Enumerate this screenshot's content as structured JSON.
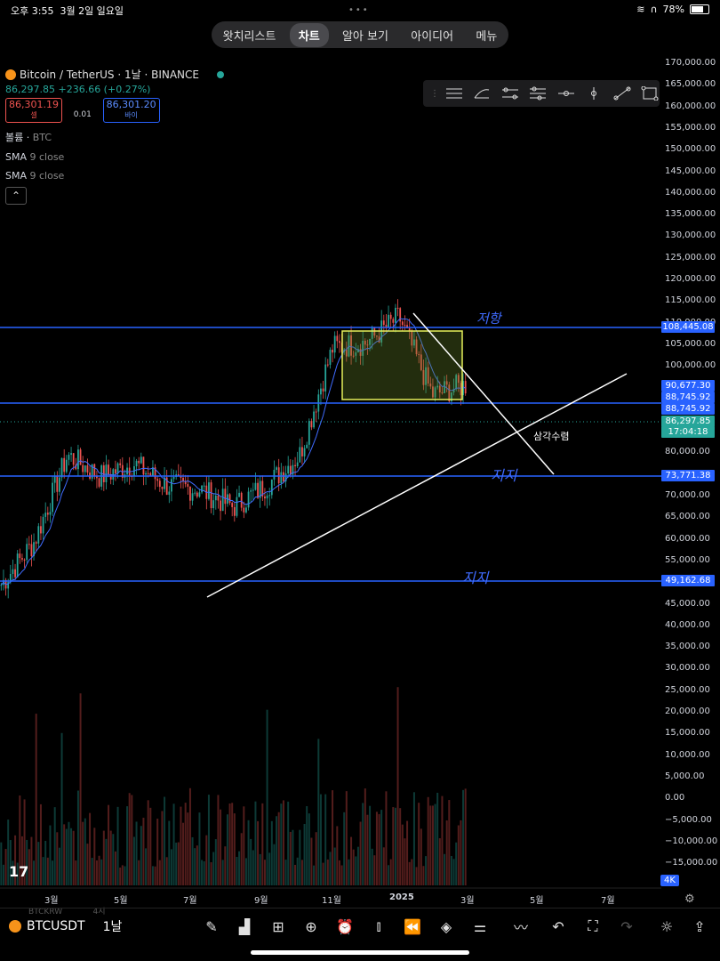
{
  "status": {
    "time": "오후 3:55",
    "date": "3월 2일 일요일",
    "battery": "78%"
  },
  "nav": {
    "tabs": [
      "왓치리스트",
      "차트",
      "알아 보기",
      "아이디어",
      "메뉴"
    ],
    "active": "차트"
  },
  "legend": {
    "title": "Bitcoin / TetherUS · 1날 · BINANCE",
    "price": "86,297.85",
    "change": "+236.66 (+0.27%)",
    "sell_price": "86,301.19",
    "sell_label": "셀",
    "spread": "0.01",
    "buy_price": "86,301.20",
    "buy_label": "바이",
    "indicators": [
      {
        "name": "볼륨",
        "value": "BTC"
      },
      {
        "name": "SMA",
        "value": "9 close"
      },
      {
        "name": "SMA",
        "value": "9 close"
      }
    ]
  },
  "drawing_tools": [
    "horizontal-lines",
    "curve",
    "parallel-channel",
    "pitchfork",
    "horizontal-ray",
    "vertical-line",
    "trend-line",
    "rectangle"
  ],
  "yaxis": [
    "170,000.00",
    "165,000.00",
    "160,000.00",
    "155,000.00",
    "150,000.00",
    "145,000.00",
    "140,000.00",
    "135,000.00",
    "130,000.00",
    "125,000.00",
    "120,000.00",
    "115,000.00",
    "110,000.00",
    "105,000.00",
    "100,000.00",
    "95,000.00",
    "90,000.00",
    "85,000.00",
    "80,000.00",
    "75,000.00",
    "70,000.00",
    "65,000.00",
    "60,000.00",
    "55,000.00",
    "50,000.00",
    "45,000.00",
    "40,000.00",
    "35,000.00",
    "30,000.00",
    "25,000.00",
    "20,000.00",
    "15,000.00",
    "10,000.00",
    "5,000.00",
    "0.00",
    "−5,000.00",
    "−10,000.00",
    "−15,000.00"
  ],
  "price_tags": [
    {
      "label": "108,445.08",
      "color": "#2962ff"
    },
    {
      "label": "90,677.30",
      "color": "#2962ff"
    },
    {
      "label": "88,745.92",
      "color": "#2962ff"
    },
    {
      "label": "88,745.92",
      "color": "#2962ff"
    },
    {
      "label": "86,297.85",
      "color": "#26a69a"
    },
    {
      "label": "17:04:18",
      "color": "#26a69a"
    },
    {
      "label": "73,771.38",
      "color": "#2962ff"
    },
    {
      "label": "49,162.68",
      "color": "#2962ff"
    }
  ],
  "annotations": {
    "resistance": "저항",
    "support1": "지지",
    "support2": "지지",
    "triangle": "삼각수렴"
  },
  "xaxis": [
    "3월",
    "5월",
    "7월",
    "9월",
    "11월",
    "2025",
    "3월",
    "5월",
    "7월"
  ],
  "badge_4k": "4K",
  "bottom": {
    "symbol": "BTCUSDT",
    "interval": "1날",
    "ghost_rows": [
      "BTCKRW",
      "4시",
      "USDKRW",
      "1M"
    ],
    "tools": [
      "pencil-icon",
      "chart-type-icon",
      "grid-icon",
      "add-icon",
      "alarm-icon",
      "candles-icon",
      "replay-icon",
      "layers-icon",
      "settings-sliders-icon",
      "compare-icon",
      "undo-icon",
      "fullscreen-icon",
      "redo-icon",
      "idea-icon",
      "share-icon"
    ]
  },
  "chart_data": {
    "type": "candlestick",
    "symbol": "Bitcoin / TetherUS",
    "interval": "1날",
    "ylim": [
      -15000,
      170000
    ],
    "x_ticks": [
      "3월",
      "5월",
      "7월",
      "9월",
      "11월",
      "2025",
      "3월",
      "5월",
      "7월"
    ],
    "horizontal_levels": [
      108445.08,
      88745.92,
      73771.38,
      49162.68
    ],
    "last_price": 86297.85,
    "annotations": [
      "저항",
      "지지",
      "지지",
      "삼각수렴"
    ],
    "approx_path": [
      {
        "x": "2024-01",
        "close": 40000
      },
      {
        "x": "2024-02",
        "close": 50000
      },
      {
        "x": "2024-03",
        "close": 70000
      },
      {
        "x": "2024-04",
        "close": 65000
      },
      {
        "x": "2024-05",
        "close": 68000
      },
      {
        "x": "2024-06",
        "close": 63000
      },
      {
        "x": "2024-07",
        "close": 62000
      },
      {
        "x": "2024-08",
        "close": 58000
      },
      {
        "x": "2024-09",
        "close": 63000
      },
      {
        "x": "2024-10",
        "close": 70000
      },
      {
        "x": "2024-11",
        "close": 95000
      },
      {
        "x": "2024-12",
        "close": 96000
      },
      {
        "x": "2025-01",
        "close": 102000
      },
      {
        "x": "2025-02",
        "close": 84000
      },
      {
        "x": "2025-03",
        "close": 86297.85
      }
    ]
  }
}
